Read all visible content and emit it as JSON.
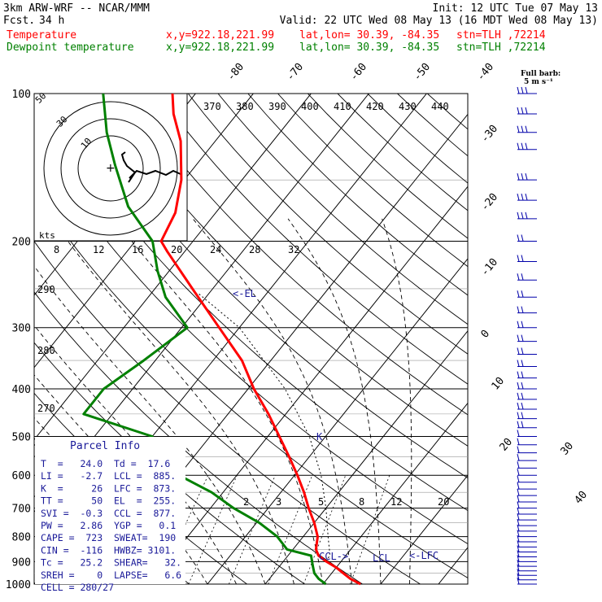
{
  "header": {
    "model": "3km ARW-WRF -- NCAR/MMM",
    "init": "Init: 12 UTC Tue 07 May 13",
    "fcst_label": "Fcst.",
    "fcst_value": "34 h",
    "valid": "Valid: 22 UTC Wed 08 May 13 (16 MDT Wed 08 May 13)",
    "temp_label": "Temperature",
    "dewp_label": "Dewpoint temperature",
    "xy": "x,y=922.18,221.99",
    "latlon": "lat,lon= 30.39, -84.35",
    "stn": "stn=TLH ,72214"
  },
  "colors": {
    "temperature": "#ff0000",
    "dewpoint": "#008000",
    "parcel": "#1a1a99",
    "wind": "#0000aa",
    "grid": "#000000"
  },
  "wind_legend": {
    "title": "Full barb:",
    "value": "5 m s⁻¹"
  },
  "parcel_info": {
    "title": "Parcel Info",
    "rows": [
      "T  =   24.0  Td =  17.6",
      "LI =   -2.7  LCL =  885.",
      "K  =     26  LFC =  873.",
      "TT =     50  EL  =  255.",
      "SVI =  -0.3  CCL =  877.",
      "PW =   2.86  YGP =   0.1",
      "CAPE =  723  SWEAT=  190",
      "CIN =  -116  HWBZ= 3101.",
      "Tc =   25.2  SHEAR=   32.",
      "SREH =    0  LAPSE=   6.6",
      "CELL = 280/27"
    ]
  },
  "level_labels": {
    "el": "<-EL",
    "ccl": "CCL->",
    "lcl": "LCL",
    "lfc": "<-LFC",
    "k": "K"
  },
  "hodograph": {
    "speed_unit": "kts",
    "rings": [
      "10",
      "30",
      "50"
    ],
    "x_ticks": [
      "8",
      "12",
      "16",
      "20",
      "24",
      "28",
      "32"
    ]
  },
  "chart_data": {
    "type": "skew-t log-p sounding",
    "p_ticks": [
      100,
      200,
      300,
      400,
      500,
      600,
      700,
      800,
      900,
      1000
    ],
    "isotherm_labels": [
      "-80",
      "-70",
      "-60",
      "-50",
      "-40",
      "-30",
      "-20",
      "-10",
      "0",
      "10",
      "20",
      "30",
      "40"
    ],
    "theta_labels_top": [
      "370",
      "380",
      "390",
      "400",
      "410",
      "420",
      "430",
      "440"
    ],
    "theta_labels_left": [
      "290",
      "280",
      "270"
    ],
    "mixing_ratio_labels": [
      "2",
      "3",
      "5",
      "8",
      "12",
      "20"
    ],
    "temperature": [
      [
        1000,
        26.5
      ],
      [
        975,
        24.0
      ],
      [
        950,
        22.0
      ],
      [
        925,
        20.0
      ],
      [
        900,
        17.5
      ],
      [
        875,
        15.3
      ],
      [
        850,
        14.0
      ],
      [
        800,
        12.5
      ],
      [
        750,
        10.0
      ],
      [
        700,
        7.0
      ],
      [
        650,
        4.0
      ],
      [
        600,
        0.5
      ],
      [
        550,
        -3.5
      ],
      [
        500,
        -8.0
      ],
      [
        450,
        -13.0
      ],
      [
        400,
        -19.0
      ],
      [
        350,
        -25.0
      ],
      [
        300,
        -33.5
      ],
      [
        250,
        -43.5
      ],
      [
        210,
        -53.0
      ],
      [
        200,
        -55.5
      ],
      [
        175,
        -57.0
      ],
      [
        150,
        -60.5
      ],
      [
        125,
        -66.0
      ],
      [
        110,
        -71.0
      ],
      [
        100,
        -74.0
      ]
    ],
    "dewpoint": [
      [
        1000,
        20.5
      ],
      [
        975,
        18.5
      ],
      [
        950,
        17.0
      ],
      [
        925,
        16.0
      ],
      [
        900,
        15.0
      ],
      [
        875,
        14.0
      ],
      [
        850,
        9.0
      ],
      [
        800,
        5.5
      ],
      [
        750,
        0.5
      ],
      [
        700,
        -6.0
      ],
      [
        650,
        -12.0
      ],
      [
        600,
        -20.0
      ],
      [
        550,
        -26.0
      ],
      [
        500,
        -30.0
      ],
      [
        450,
        -45.0
      ],
      [
        400,
        -45.0
      ],
      [
        350,
        -42.0
      ],
      [
        300,
        -39.0
      ],
      [
        260,
        -47.0
      ],
      [
        230,
        -52.0
      ],
      [
        200,
        -57.0
      ],
      [
        170,
        -66.0
      ],
      [
        140,
        -74.0
      ],
      [
        120,
        -80.0
      ],
      [
        100,
        -86.0
      ]
    ],
    "parcel": [
      [
        885,
        17.3
      ],
      [
        873,
        17.2
      ],
      [
        800,
        14.3
      ],
      [
        700,
        10.0
      ],
      [
        600,
        4.6
      ],
      [
        500,
        -2.8
      ],
      [
        400,
        -13.6
      ],
      [
        300,
        -30.0
      ],
      [
        255,
        -42.0
      ]
    ],
    "wind_barbs_p": [
      100,
      110,
      120,
      130,
      150,
      165,
      180,
      200,
      220,
      240,
      260,
      280,
      300,
      320,
      340,
      360,
      380,
      400,
      420,
      440,
      460,
      480,
      500,
      520,
      540,
      560,
      580,
      600,
      620,
      640,
      660,
      680,
      700,
      720,
      740,
      760,
      780,
      800,
      820,
      840,
      860,
      880,
      900,
      920,
      940,
      960,
      980,
      1000
    ]
  }
}
